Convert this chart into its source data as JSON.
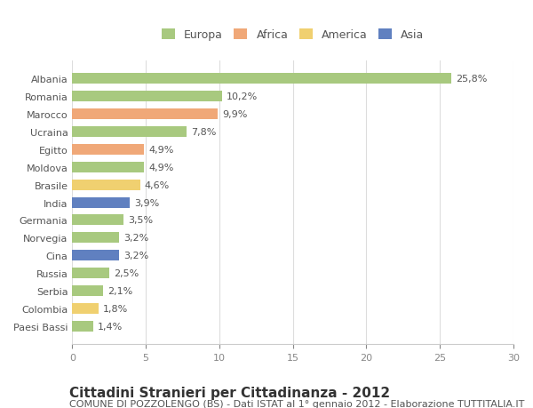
{
  "countries": [
    "Albania",
    "Romania",
    "Marocco",
    "Ucraina",
    "Egitto",
    "Moldova",
    "Brasile",
    "India",
    "Germania",
    "Norvegia",
    "Cina",
    "Russia",
    "Serbia",
    "Colombia",
    "Paesi Bassi"
  ],
  "values": [
    25.8,
    10.2,
    9.9,
    7.8,
    4.9,
    4.9,
    4.6,
    3.9,
    3.5,
    3.2,
    3.2,
    2.5,
    2.1,
    1.8,
    1.4
  ],
  "labels": [
    "25,8%",
    "10,2%",
    "9,9%",
    "7,8%",
    "4,9%",
    "4,9%",
    "4,6%",
    "3,9%",
    "3,5%",
    "3,2%",
    "3,2%",
    "2,5%",
    "2,1%",
    "1,8%",
    "1,4%"
  ],
  "colors": [
    "#a8c97f",
    "#a8c97f",
    "#f0a878",
    "#a8c97f",
    "#f0a878",
    "#a8c97f",
    "#f0d070",
    "#6080c0",
    "#a8c97f",
    "#a8c97f",
    "#6080c0",
    "#a8c97f",
    "#a8c97f",
    "#f0d070",
    "#a8c97f"
  ],
  "legend_labels": [
    "Europa",
    "Africa",
    "America",
    "Asia"
  ],
  "legend_colors": [
    "#a8c97f",
    "#f0a878",
    "#f0d070",
    "#6080c0"
  ],
  "title": "Cittadini Stranieri per Cittadinanza - 2012",
  "subtitle": "COMUNE DI POZZOLENGO (BS) - Dati ISTAT al 1° gennaio 2012 - Elaborazione TUTTITALIA.IT",
  "xlim": [
    0,
    30
  ],
  "xticks": [
    0,
    5,
    10,
    15,
    20,
    25,
    30
  ],
  "background_color": "#ffffff",
  "grid_color": "#dddddd",
  "bar_height": 0.6,
  "title_fontsize": 11,
  "subtitle_fontsize": 8,
  "label_fontsize": 8,
  "tick_fontsize": 8,
  "legend_fontsize": 9
}
